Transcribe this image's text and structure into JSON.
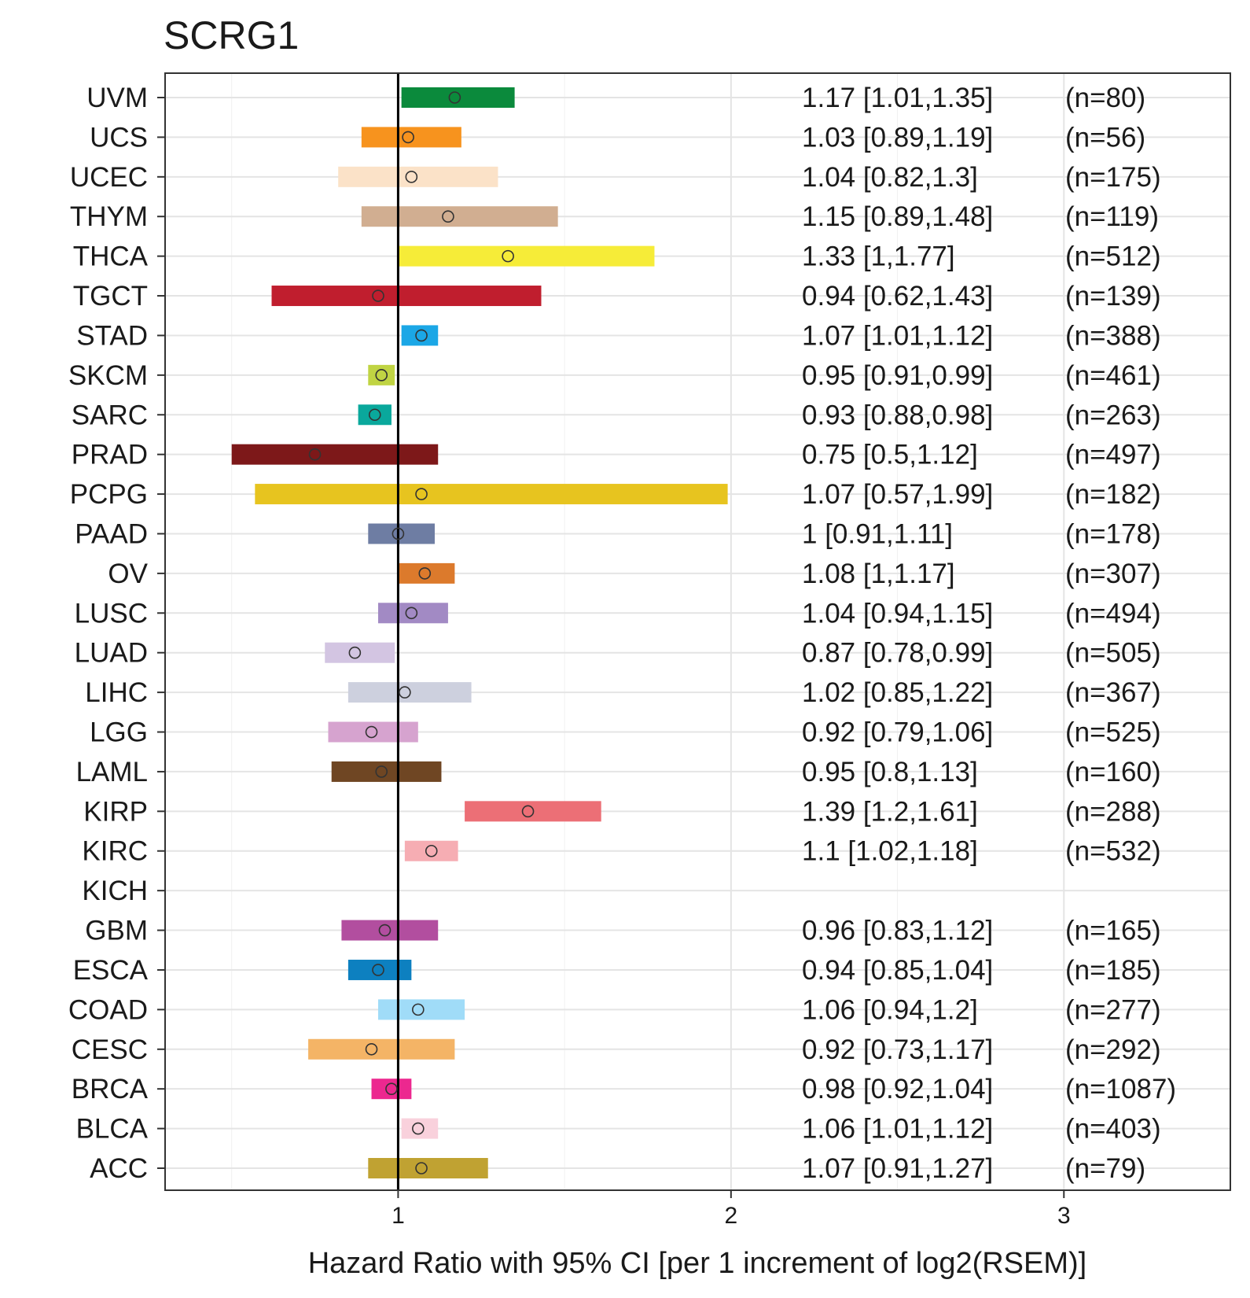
{
  "chart_data": {
    "type": "forest",
    "title": "SCRG1",
    "xlabel": "Hazard Ratio with 95% CI [per 1 increment of log2(RSEM)]",
    "ylabel": "",
    "xlim": [
      0.3,
      3.5
    ],
    "xticks": [
      1,
      2,
      3
    ],
    "xtick_labels": [
      "1",
      "2",
      "3"
    ],
    "reference_line": 1,
    "grid": true,
    "rows": [
      {
        "label": "UVM",
        "hr": 1.17,
        "lo": 1.01,
        "hi": 1.35,
        "text": "1.17 [1.01,1.35]",
        "n": "(n=80)",
        "color": "#0b8a3c"
      },
      {
        "label": "UCS",
        "hr": 1.03,
        "lo": 0.89,
        "hi": 1.19,
        "text": "1.03 [0.89,1.19]",
        "n": "(n=56)",
        "color": "#f7931e"
      },
      {
        "label": "UCEC",
        "hr": 1.04,
        "lo": 0.82,
        "hi": 1.3,
        "text": "1.04 [0.82,1.3]",
        "n": "(n=175)",
        "color": "#fbe2c8"
      },
      {
        "label": "THYM",
        "hr": 1.15,
        "lo": 0.89,
        "hi": 1.48,
        "text": "1.15 [0.89,1.48]",
        "n": "(n=119)",
        "color": "#d1ae91"
      },
      {
        "label": "THCA",
        "hr": 1.33,
        "lo": 1,
        "hi": 1.77,
        "text": "1.33 [1,1.77]",
        "n": "(n=512)",
        "color": "#f6ec38"
      },
      {
        "label": "TGCT",
        "hr": 0.94,
        "lo": 0.62,
        "hi": 1.43,
        "text": "0.94 [0.62,1.43]",
        "n": "(n=139)",
        "color": "#c01e2e"
      },
      {
        "label": "STAD",
        "hr": 1.07,
        "lo": 1.01,
        "hi": 1.12,
        "text": "1.07 [1.01,1.12]",
        "n": "(n=388)",
        "color": "#1ba7e6"
      },
      {
        "label": "SKCM",
        "hr": 0.95,
        "lo": 0.91,
        "hi": 0.99,
        "text": "0.95 [0.91,0.99]",
        "n": "(n=461)",
        "color": "#c0d443"
      },
      {
        "label": "SARC",
        "hr": 0.93,
        "lo": 0.88,
        "hi": 0.98,
        "text": "0.93 [0.88,0.98]",
        "n": "(n=263)",
        "color": "#0aa89c"
      },
      {
        "label": "PRAD",
        "hr": 0.75,
        "lo": 0.5,
        "hi": 1.12,
        "text": "0.75 [0.5,1.12]",
        "n": "(n=497)",
        "color": "#7d1819"
      },
      {
        "label": "PCPG",
        "hr": 1.07,
        "lo": 0.57,
        "hi": 1.99,
        "text": "1.07 [0.57,1.99]",
        "n": "(n=182)",
        "color": "#e7c41f"
      },
      {
        "label": "PAAD",
        "hr": 1,
        "lo": 0.91,
        "hi": 1.11,
        "text": "1 [0.91,1.11]",
        "n": "(n=178)",
        "color": "#6e7da3"
      },
      {
        "label": "OV",
        "hr": 1.08,
        "lo": 1,
        "hi": 1.17,
        "text": "1.08 [1,1.17]",
        "n": "(n=307)",
        "color": "#dc7a2c"
      },
      {
        "label": "LUSC",
        "hr": 1.04,
        "lo": 0.94,
        "hi": 1.15,
        "text": "1.04 [0.94,1.15]",
        "n": "(n=494)",
        "color": "#a28ac4"
      },
      {
        "label": "LUAD",
        "hr": 0.87,
        "lo": 0.78,
        "hi": 0.99,
        "text": "0.87 [0.78,0.99]",
        "n": "(n=505)",
        "color": "#d3c5e2"
      },
      {
        "label": "LIHC",
        "hr": 1.02,
        "lo": 0.85,
        "hi": 1.22,
        "text": "1.02 [0.85,1.22]",
        "n": "(n=367)",
        "color": "#cdd0de"
      },
      {
        "label": "LGG",
        "hr": 0.92,
        "lo": 0.79,
        "hi": 1.06,
        "text": "0.92 [0.79,1.06]",
        "n": "(n=525)",
        "color": "#d6a3cf"
      },
      {
        "label": "LAML",
        "hr": 0.95,
        "lo": 0.8,
        "hi": 1.13,
        "text": "0.95 [0.8,1.13]",
        "n": "(n=160)",
        "color": "#6f4623"
      },
      {
        "label": "KIRP",
        "hr": 1.39,
        "lo": 1.2,
        "hi": 1.61,
        "text": "1.39 [1.2,1.61]",
        "n": "(n=288)",
        "color": "#ec6f76"
      },
      {
        "label": "KIRC",
        "hr": 1.1,
        "lo": 1.02,
        "hi": 1.18,
        "text": "1.1 [1.02,1.18]",
        "n": "(n=532)",
        "color": "#f6adb3"
      },
      {
        "label": "KICH",
        "hr": null,
        "lo": null,
        "hi": null,
        "text": "",
        "n": "",
        "color": "#ffffff"
      },
      {
        "label": "GBM",
        "hr": 0.96,
        "lo": 0.83,
        "hi": 1.12,
        "text": "0.96 [0.83,1.12]",
        "n": "(n=165)",
        "color": "#b24e9f"
      },
      {
        "label": "ESCA",
        "hr": 0.94,
        "lo": 0.85,
        "hi": 1.04,
        "text": "0.94 [0.85,1.04]",
        "n": "(n=185)",
        "color": "#0d80c0"
      },
      {
        "label": "COAD",
        "hr": 1.06,
        "lo": 0.94,
        "hi": 1.2,
        "text": "1.06 [0.94,1.2]",
        "n": "(n=277)",
        "color": "#a0dcf8"
      },
      {
        "label": "CESC",
        "hr": 0.92,
        "lo": 0.73,
        "hi": 1.17,
        "text": "0.92 [0.73,1.17]",
        "n": "(n=292)",
        "color": "#f4b466"
      },
      {
        "label": "BRCA",
        "hr": 0.98,
        "lo": 0.92,
        "hi": 1.04,
        "text": "0.98 [0.92,1.04]",
        "n": "(n=1087)",
        "color": "#ec288f"
      },
      {
        "label": "BLCA",
        "hr": 1.06,
        "lo": 1.01,
        "hi": 1.12,
        "text": "1.06 [1.01,1.12]",
        "n": "(n=403)",
        "color": "#f9d1dc"
      },
      {
        "label": "ACC",
        "hr": 1.07,
        "lo": 0.91,
        "hi": 1.27,
        "text": "1.07 [0.91,1.27]",
        "n": "(n=79)",
        "color": "#c0a232"
      }
    ]
  }
}
